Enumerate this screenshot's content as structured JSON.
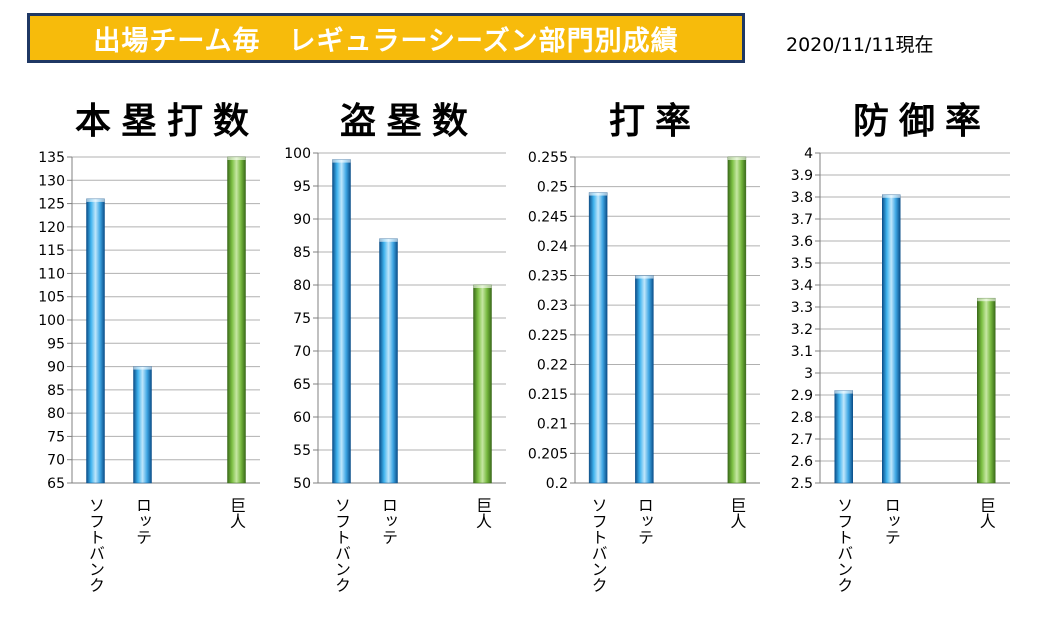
{
  "banner": {
    "title": "出場チーム毎　レギュラーシーズン部門別成績"
  },
  "date_label": "2020/11/11現在",
  "colors": {
    "banner_bg": "#f7bb0b",
    "banner_border": "#1f3864",
    "blue": "#1e90d6",
    "green": "#6aa637"
  },
  "chart_data": [
    {
      "type": "bar",
      "title": "本塁打数",
      "categories": [
        "ソフトバンク",
        "ロッテ",
        "",
        "巨人"
      ],
      "values": [
        126,
        90,
        null,
        135
      ],
      "bar_colors": [
        "blue",
        "blue",
        "blue",
        "green"
      ],
      "ylim": [
        65,
        135
      ],
      "yticks": [
        "65",
        "70",
        "75",
        "80",
        "85",
        "90",
        "95",
        "100",
        "105",
        "110",
        "115",
        "120",
        "125",
        "130",
        "135"
      ],
      "grid": true
    },
    {
      "type": "bar",
      "title": "盗塁数",
      "categories": [
        "ソフトバンク",
        "ロッテ",
        "",
        "巨人"
      ],
      "values": [
        99,
        87,
        null,
        80
      ],
      "bar_colors": [
        "blue",
        "blue",
        "blue",
        "green"
      ],
      "ylim": [
        50,
        100
      ],
      "yticks": [
        "50",
        "55",
        "60",
        "65",
        "70",
        "75",
        "80",
        "85",
        "90",
        "95",
        "100"
      ],
      "grid": true
    },
    {
      "type": "bar",
      "title": "打率",
      "categories": [
        "ソフトバンク",
        "ロッテ",
        "",
        "巨人"
      ],
      "values": [
        0.249,
        0.235,
        null,
        0.255
      ],
      "bar_colors": [
        "blue",
        "blue",
        "blue",
        "green"
      ],
      "ylim": [
        0.2,
        0.255
      ],
      "yticks": [
        "0.2",
        "0.205",
        "0.21",
        "0.215",
        "0.22",
        "0.225",
        "0.23",
        "0.235",
        "0.24",
        "0.245",
        "0.25",
        "0.255"
      ],
      "grid": true
    },
    {
      "type": "bar",
      "title": "防御率",
      "categories": [
        "ソフトバンク",
        "ロッテ",
        "",
        "巨人"
      ],
      "values": [
        2.92,
        3.81,
        null,
        3.34
      ],
      "bar_colors": [
        "blue",
        "blue",
        "blue",
        "green"
      ],
      "ylim": [
        2.5,
        4
      ],
      "yticks": [
        "2.5",
        "2.6",
        "2.7",
        "2.8",
        "2.9",
        "3",
        "3.1",
        "3.2",
        "3.3",
        "3.4",
        "3.5",
        "3.6",
        "3.7",
        "3.8",
        "3.9",
        "4"
      ],
      "grid": true
    }
  ]
}
